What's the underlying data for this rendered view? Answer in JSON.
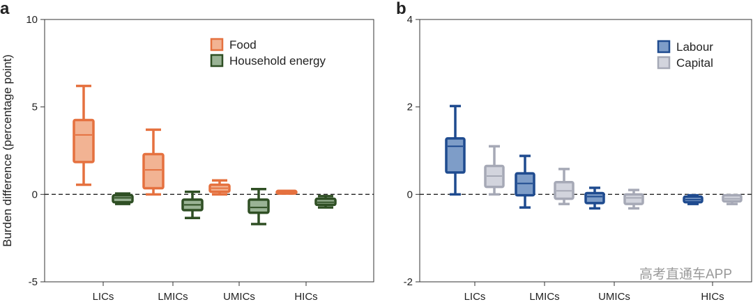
{
  "watermark": "高考直通车APP",
  "chart_data": [
    {
      "type": "box",
      "panel_letter": "a",
      "ylabel": "Burden difference (percentage point)",
      "ylim": [
        -5,
        10
      ],
      "yticks": [
        -5,
        0,
        5,
        10
      ],
      "reference_line": 0,
      "categories": [
        "LICs",
        "LMICs",
        "UMICs",
        "HICs"
      ],
      "legend_position": "top-right",
      "series": [
        {
          "name": "Food",
          "edge_color": "#e5713f",
          "fill_color": "#f2b393",
          "boxes": [
            {
              "min": 0.55,
              "q1": 1.85,
              "median": 3.4,
              "q3": 4.25,
              "max": 6.2
            },
            {
              "min": 0.0,
              "q1": 0.35,
              "median": 1.4,
              "q3": 2.3,
              "max": 3.7
            },
            {
              "min": 0.0,
              "q1": 0.15,
              "median": 0.35,
              "q3": 0.55,
              "max": 0.8
            },
            {
              "min": 0.05,
              "q1": 0.05,
              "median": 0.12,
              "q3": 0.2,
              "max": 0.2
            }
          ]
        },
        {
          "name": "Household energy",
          "edge_color": "#2f4f24",
          "fill_color": "#9ab395",
          "boxes": [
            {
              "min": -0.55,
              "q1": -0.45,
              "median": -0.2,
              "q3": -0.05,
              "max": 0.05
            },
            {
              "min": -1.35,
              "q1": -0.9,
              "median": -0.6,
              "q3": -0.3,
              "max": 0.15
            },
            {
              "min": -1.7,
              "q1": -1.05,
              "median": -0.75,
              "q3": -0.3,
              "max": 0.3
            },
            {
              "min": -0.75,
              "q1": -0.6,
              "median": -0.45,
              "q3": -0.25,
              "max": -0.1
            }
          ]
        }
      ]
    },
    {
      "type": "box",
      "panel_letter": "b",
      "ylabel": "",
      "ylim": [
        -2,
        4
      ],
      "yticks": [
        -2,
        0,
        2,
        4
      ],
      "reference_line": 0,
      "categories": [
        "LICs",
        "LMICs",
        "UMICs",
        "HICs"
      ],
      "legend_position": "top-right",
      "series": [
        {
          "name": "Labour",
          "edge_color": "#1f4b8f",
          "fill_color": "#7e9dc8",
          "boxes": [
            {
              "min": 0.0,
              "q1": 0.5,
              "median": 1.1,
              "q3": 1.28,
              "max": 2.02
            },
            {
              "min": -0.3,
              "q1": -0.02,
              "median": 0.25,
              "q3": 0.48,
              "max": 0.88
            },
            {
              "min": -0.32,
              "q1": -0.2,
              "median": -0.05,
              "q3": 0.03,
              "max": 0.15
            },
            {
              "min": -0.22,
              "q1": -0.18,
              "median": -0.12,
              "q3": -0.05,
              "max": -0.02
            }
          ]
        },
        {
          "name": "Capital",
          "edge_color": "#a6a9b6",
          "fill_color": "#d2d4dd",
          "boxes": [
            {
              "min": 0.0,
              "q1": 0.17,
              "median": 0.42,
              "q3": 0.65,
              "max": 1.1
            },
            {
              "min": -0.22,
              "q1": -0.1,
              "median": 0.08,
              "q3": 0.28,
              "max": 0.58
            },
            {
              "min": -0.32,
              "q1": -0.22,
              "median": -0.08,
              "q3": 0.0,
              "max": 0.1
            },
            {
              "min": -0.22,
              "q1": -0.16,
              "median": -0.1,
              "q3": -0.02,
              "max": -0.02
            }
          ]
        }
      ]
    }
  ]
}
